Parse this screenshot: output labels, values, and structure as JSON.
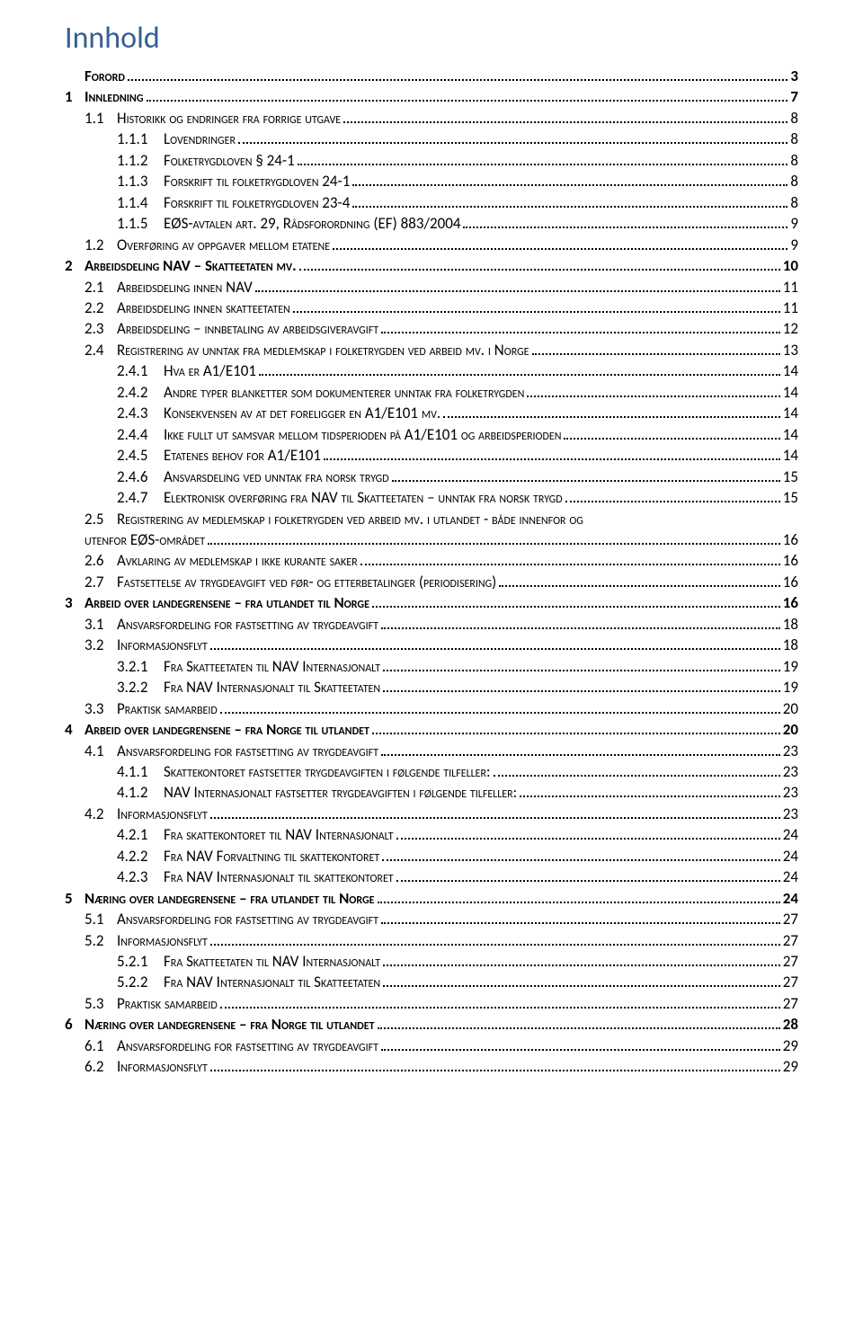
{
  "title": "Innhold",
  "colors": {
    "title": "#365f91",
    "text": "#000000",
    "background": "#ffffff"
  },
  "typography": {
    "title_fontsize_pt": 26,
    "body_fontsize_pt": 12,
    "font_family": "Calibri"
  },
  "toc": [
    {
      "level": 1,
      "num": "",
      "label": "Forord",
      "page": "3",
      "bold": true
    },
    {
      "level": 1,
      "num": "1",
      "label": "Innledning",
      "page": "7",
      "bold": true
    },
    {
      "level": 2,
      "num": "1.1",
      "label": "Historikk og endringer fra forrige utgave",
      "page": "8"
    },
    {
      "level": 3,
      "num": "1.1.1",
      "label": "Lovendringer",
      "page": "8"
    },
    {
      "level": 3,
      "num": "1.1.2",
      "label": "Folketrygdloven § 24-1",
      "page": "8"
    },
    {
      "level": 3,
      "num": "1.1.3",
      "label": "Forskrift til folketrygdloven 24-1",
      "page": "8"
    },
    {
      "level": 3,
      "num": "1.1.4",
      "label": "Forskrift til folketrygdloven 23-4",
      "page": "8"
    },
    {
      "level": 3,
      "num": "1.1.5",
      "label": "EØS-avtalen art. 29, Rådsforordning (EF) 883/2004",
      "page": "9"
    },
    {
      "level": 2,
      "num": "1.2",
      "label": "Overføring av oppgaver mellom etatene",
      "page": "9"
    },
    {
      "level": 1,
      "num": "2",
      "label": "Arbeidsdeling NAV – Skatteetaten mv.",
      "page": "10",
      "bold": true
    },
    {
      "level": 2,
      "num": "2.1",
      "label": "Arbeidsdeling innen NAV",
      "page": "11"
    },
    {
      "level": 2,
      "num": "2.2",
      "label": "Arbeidsdeling innen skatteetaten",
      "page": "11"
    },
    {
      "level": 2,
      "num": "2.3",
      "label": "Arbeidsdeling – innbetaling av arbeidsgiveravgift",
      "page": "12"
    },
    {
      "level": 2,
      "num": "2.4",
      "label": "Registrering av unntak fra medlemskap i folketrygden ved arbeid mv. i Norge",
      "page": "13"
    },
    {
      "level": 3,
      "num": "2.4.1",
      "label": "Hva er A1/E101",
      "page": "14"
    },
    {
      "level": 3,
      "num": "2.4.2",
      "label": "Andre typer blanketter som dokumenterer unntak fra folketrygden",
      "page": "14"
    },
    {
      "level": 3,
      "num": "2.4.3",
      "label": "Konsekvensen av at det foreligger en A1/E101 mv.",
      "page": "14"
    },
    {
      "level": 3,
      "num": "2.4.4",
      "label": "Ikke fullt ut samsvar mellom tidsperioden på A1/E101 og arbeidsperioden",
      "page": "14"
    },
    {
      "level": 3,
      "num": "2.4.5",
      "label": "Etatenes behov for A1/E101",
      "page": "14"
    },
    {
      "level": 3,
      "num": "2.4.6",
      "label": "Ansvarsdeling ved unntak fra norsk trygd",
      "page": "15"
    },
    {
      "level": 3,
      "num": "2.4.7",
      "label": "Elektronisk overføring fra NAV til Skatteetaten – unntak fra norsk trygd",
      "page": "15"
    },
    {
      "level": 2,
      "num": "2.5",
      "label": "Registrering av medlemskap i folketrygden ved arbeid mv. i utlandet - både innenfor og utenfor EØS-området",
      "page": "16",
      "wrap": true
    },
    {
      "level": 2,
      "num": "2.6",
      "label": "Avklaring av medlemskap i ikke kurante saker",
      "page": "16"
    },
    {
      "level": 2,
      "num": "2.7",
      "label": "Fastsettelse av trygdeavgift ved før- og etterbetalinger (periodisering)",
      "page": "16"
    },
    {
      "level": 1,
      "num": "3",
      "label": "Arbeid over landegrensene – fra utlandet til Norge",
      "page": "16",
      "bold": true
    },
    {
      "level": 2,
      "num": "3.1",
      "label": "Ansvarsfordeling for fastsetting av trygdeavgift",
      "page": "18"
    },
    {
      "level": 2,
      "num": "3.2",
      "label": "Informasjonsflyt",
      "page": "18"
    },
    {
      "level": 3,
      "num": "3.2.1",
      "label": "Fra Skatteetaten til NAV Internasjonalt",
      "page": "19"
    },
    {
      "level": 3,
      "num": "3.2.2",
      "label": "Fra NAV Internasjonalt til Skatteetaten",
      "page": "19"
    },
    {
      "level": 2,
      "num": "3.3",
      "label": "Praktisk samarbeid",
      "page": "20"
    },
    {
      "level": 1,
      "num": "4",
      "label": "Arbeid over landegrensene – fra Norge til utlandet",
      "page": "20",
      "bold": true
    },
    {
      "level": 2,
      "num": "4.1",
      "label": "Ansvarsfordeling for fastsetting av trygdeavgift",
      "page": "23"
    },
    {
      "level": 3,
      "num": "4.1.1",
      "label": "Skattekontoret fastsetter trygdeavgiften i følgende tilfeller:",
      "page": "23"
    },
    {
      "level": 3,
      "num": "4.1.2",
      "label": "NAV Internasjonalt fastsetter trygdeavgiften i følgende tilfeller:",
      "page": "23"
    },
    {
      "level": 2,
      "num": "4.2",
      "label": "Informasjonsflyt",
      "page": "23"
    },
    {
      "level": 3,
      "num": "4.2.1",
      "label": "Fra skattekontoret til NAV Internasjonalt",
      "page": "24"
    },
    {
      "level": 3,
      "num": "4.2.2",
      "label": "Fra NAV Forvaltning til skattekontoret",
      "page": "24"
    },
    {
      "level": 3,
      "num": "4.2.3",
      "label": "Fra NAV Internasjonalt til skattekontoret",
      "page": "24"
    },
    {
      "level": 1,
      "num": "5",
      "label": "Næring over landegrensene – fra utlandet til Norge",
      "page": "24",
      "bold": true
    },
    {
      "level": 2,
      "num": "5.1",
      "label": "Ansvarsfordeling for fastsetting av trygdeavgift",
      "page": "27"
    },
    {
      "level": 2,
      "num": "5.2",
      "label": "Informasjonsflyt",
      "page": "27"
    },
    {
      "level": 3,
      "num": "5.2.1",
      "label": "Fra Skatteetaten til NAV Internasjonalt",
      "page": "27"
    },
    {
      "level": 3,
      "num": "5.2.2",
      "label": "Fra NAV Internasjonalt til Skatteetaten",
      "page": "27"
    },
    {
      "level": 2,
      "num": "5.3",
      "label": "Praktisk samarbeid",
      "page": "27"
    },
    {
      "level": 1,
      "num": "6",
      "label": "Næring over landegrensene – fra Norge til utlandet",
      "page": "28",
      "bold": true
    },
    {
      "level": 2,
      "num": "6.1",
      "label": "Ansvarsfordeling for fastsetting av trygdeavgift",
      "page": "29"
    },
    {
      "level": 2,
      "num": "6.2",
      "label": "Informasjonsflyt",
      "page": "29"
    }
  ]
}
